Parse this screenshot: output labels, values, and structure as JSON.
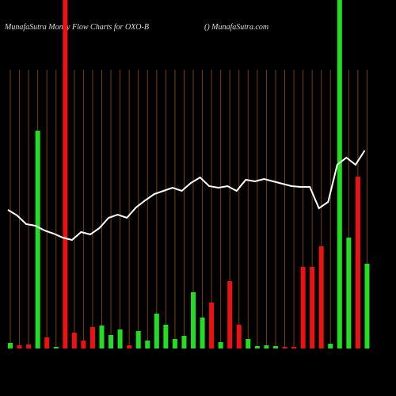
{
  "chart_data": {
    "type": "bar",
    "title": "MunafaSutra  Money Flow  Charts for OXO-B",
    "subtitle": "() MunafaSutra.com",
    "ylim": [
      0,
      440
    ],
    "grid": true,
    "series": [
      {
        "name": "Money flow",
        "colors": [
          "#22dd22",
          "#ee1111",
          "#ee1111",
          "#22dd22",
          "#ee1111",
          "#22dd22",
          "#ee1111",
          "#ee1111",
          "#ee1111",
          "#ee1111",
          "#22dd22",
          "#22dd22",
          "#22dd22",
          "#ee1111",
          "#22dd22",
          "#22dd22",
          "#22dd22",
          "#22dd22",
          "#22dd22",
          "#22dd22",
          "#22dd22",
          "#22dd22",
          "#ee1111",
          "#22dd22",
          "#ee1111",
          "#ee1111",
          "#22dd22",
          "#22dd22",
          "#22dd22",
          "#22dd22",
          "#ee1111",
          "#ee1111",
          "#ee1111",
          "#ee1111",
          "#ee1111",
          "#22dd22",
          "#22dd22",
          "#22dd22",
          "#ee1111",
          "#22dd22"
        ],
        "values": [
          7,
          4,
          5,
          275,
          14,
          2,
          440,
          20,
          10,
          27,
          29,
          17,
          24,
          4,
          22,
          10,
          44,
          30,
          12,
          16,
          71,
          39,
          58,
          8,
          85,
          30,
          12,
          3,
          4,
          3,
          2,
          2,
          103,
          103,
          129,
          6,
          440,
          140,
          217,
          107
        ]
      },
      {
        "name": "Price",
        "color": "#ffffff",
        "values": [
          175,
          168,
          157,
          155,
          149,
          145,
          140,
          137,
          147,
          144,
          152,
          165,
          169,
          165,
          178,
          187,
          195,
          199,
          203,
          199,
          209,
          216,
          205,
          203,
          205,
          199,
          213,
          211,
          214,
          211,
          208,
          205,
          204,
          204,
          177,
          185,
          232,
          241,
          232,
          250
        ]
      }
    ]
  }
}
